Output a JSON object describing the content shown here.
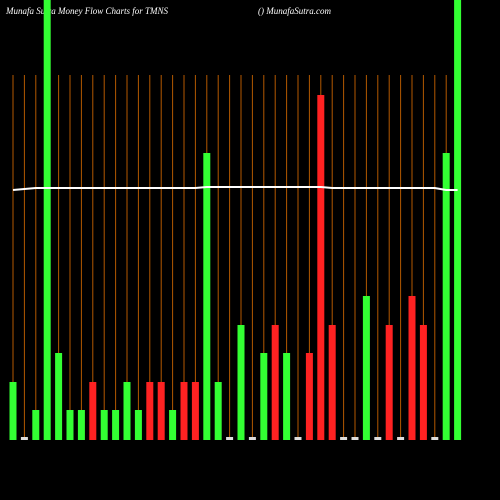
{
  "chart_data": {
    "type": "bar",
    "title": "Munafa Sutra  Money Flow  Charts for TMNS",
    "subtitle": "() MunafaSutra.com",
    "ylim": [
      0,
      440
    ],
    "values": [
      58,
      3,
      30,
      440,
      87,
      30,
      30,
      58,
      30,
      30,
      58,
      30,
      58,
      58,
      30,
      58,
      58,
      287,
      58,
      3,
      115,
      3,
      87,
      115,
      87,
      3,
      87,
      345,
      115,
      3,
      3,
      144,
      3,
      115,
      3,
      144,
      115,
      3,
      287,
      440
    ],
    "colors": [
      "#33ff33",
      "#dddddd",
      "#33ff33",
      "#33ff33",
      "#33ff33",
      "#33ff33",
      "#33ff33",
      "#ff2222",
      "#33ff33",
      "#33ff33",
      "#33ff33",
      "#33ff33",
      "#ff2222",
      "#ff2222",
      "#33ff33",
      "#ff2222",
      "#ff2222",
      "#33ff33",
      "#33ff33",
      "#dddddd",
      "#33ff33",
      "#dddddd",
      "#33ff33",
      "#ff2222",
      "#33ff33",
      "#dddddd",
      "#ff2222",
      "#ff2222",
      "#ff2222",
      "#dddddd",
      "#dddddd",
      "#33ff33",
      "#dddddd",
      "#ff2222",
      "#dddddd",
      "#ff2222",
      "#ff2222",
      "#dddddd",
      "#33ff33",
      "#33ff33"
    ],
    "line": {
      "color": "#ffffff",
      "values": [
        250,
        251,
        252,
        252,
        252,
        252,
        252,
        252,
        252,
        252,
        252,
        252,
        252,
        252,
        252,
        252,
        252,
        253,
        253,
        253,
        253,
        253,
        253,
        253,
        253,
        253,
        253,
        253,
        252,
        252,
        252,
        252,
        252,
        252,
        252,
        252,
        252,
        252,
        250,
        250
      ]
    },
    "grid_color": "#b35900"
  }
}
